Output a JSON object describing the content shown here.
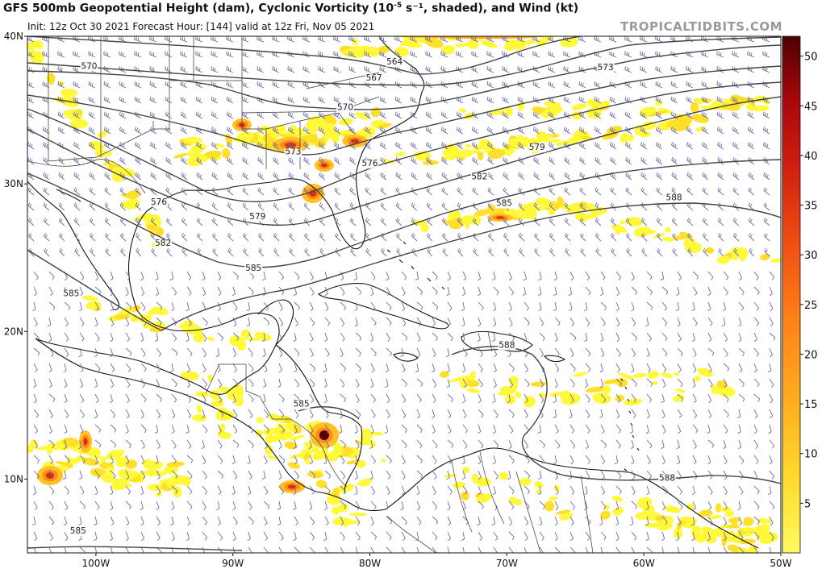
{
  "header": {
    "title_prefix": "GFS 500mb Geopotential Height (dam), Cyclonic Vorticity (10",
    "title_exp": "-5",
    "title_suffix": " s⁻¹, shaded), and Wind (kt)",
    "subtitle": "Init: 12z Oct 30 2021   Forecast Hour: [144]   valid at 12z Fri, Nov 05 2021",
    "brand": "TROPICALTIDBITS.COM"
  },
  "map": {
    "lon_range": [
      -105,
      -50
    ],
    "lat_range": [
      5,
      40
    ],
    "lat_labels": [
      {
        "lat": 40,
        "text": "40N"
      },
      {
        "lat": 30,
        "text": "30N"
      },
      {
        "lat": 20,
        "text": "20N"
      },
      {
        "lat": 10,
        "text": "10N"
      }
    ],
    "lon_labels": [
      {
        "lon": -100,
        "text": "100W"
      },
      {
        "lon": -90,
        "text": "90W"
      },
      {
        "lon": -80,
        "text": "80W"
      },
      {
        "lon": -70,
        "text": "70W"
      },
      {
        "lon": -60,
        "text": "60W"
      },
      {
        "lon": -50,
        "text": "50W"
      }
    ],
    "contour_labels": [
      {
        "text": "570",
        "lon": -100.5,
        "lat": 37.8
      },
      {
        "text": "564",
        "lon": -78.2,
        "lat": 38.1
      },
      {
        "text": "567",
        "lon": -79.7,
        "lat": 37.0
      },
      {
        "text": "573",
        "lon": -62.8,
        "lat": 37.7
      },
      {
        "text": "570",
        "lon": -81.8,
        "lat": 35.0
      },
      {
        "text": "579",
        "lon": -67.8,
        "lat": 32.3
      },
      {
        "text": "573",
        "lon": -85.6,
        "lat": 32.0
      },
      {
        "text": "576",
        "lon": -80.0,
        "lat": 31.2
      },
      {
        "text": "582",
        "lon": -72.0,
        "lat": 30.3
      },
      {
        "text": "588",
        "lon": -57.8,
        "lat": 28.9
      },
      {
        "text": "576",
        "lon": -95.4,
        "lat": 28.6
      },
      {
        "text": "585",
        "lon": -70.2,
        "lat": 28.5
      },
      {
        "text": "579",
        "lon": -88.2,
        "lat": 27.6
      },
      {
        "text": "582",
        "lon": -95.1,
        "lat": 25.8
      },
      {
        "text": "585",
        "lon": -88.5,
        "lat": 24.1
      },
      {
        "text": "585",
        "lon": -101.8,
        "lat": 22.4
      },
      {
        "text": "588",
        "lon": -70.0,
        "lat": 18.9
      },
      {
        "text": "585",
        "lon": -85.0,
        "lat": 14.9
      },
      {
        "text": "588",
        "lon": -58.3,
        "lat": 9.9
      },
      {
        "text": "585",
        "lon": -101.3,
        "lat": 6.3
      }
    ]
  },
  "colorbar": {
    "labels": [
      "50",
      "45",
      "40",
      "35",
      "30",
      "25",
      "20",
      "15",
      "10",
      "5"
    ],
    "min": 0,
    "max": 52,
    "colors": [
      "#fff93a",
      "#ffdf2a",
      "#ffc023",
      "#ffa21d",
      "#ff8a19",
      "#f56a15",
      "#e54b12",
      "#d22e10",
      "#bb1610",
      "#a0070c",
      "#7a0508",
      "#550203"
    ]
  }
}
